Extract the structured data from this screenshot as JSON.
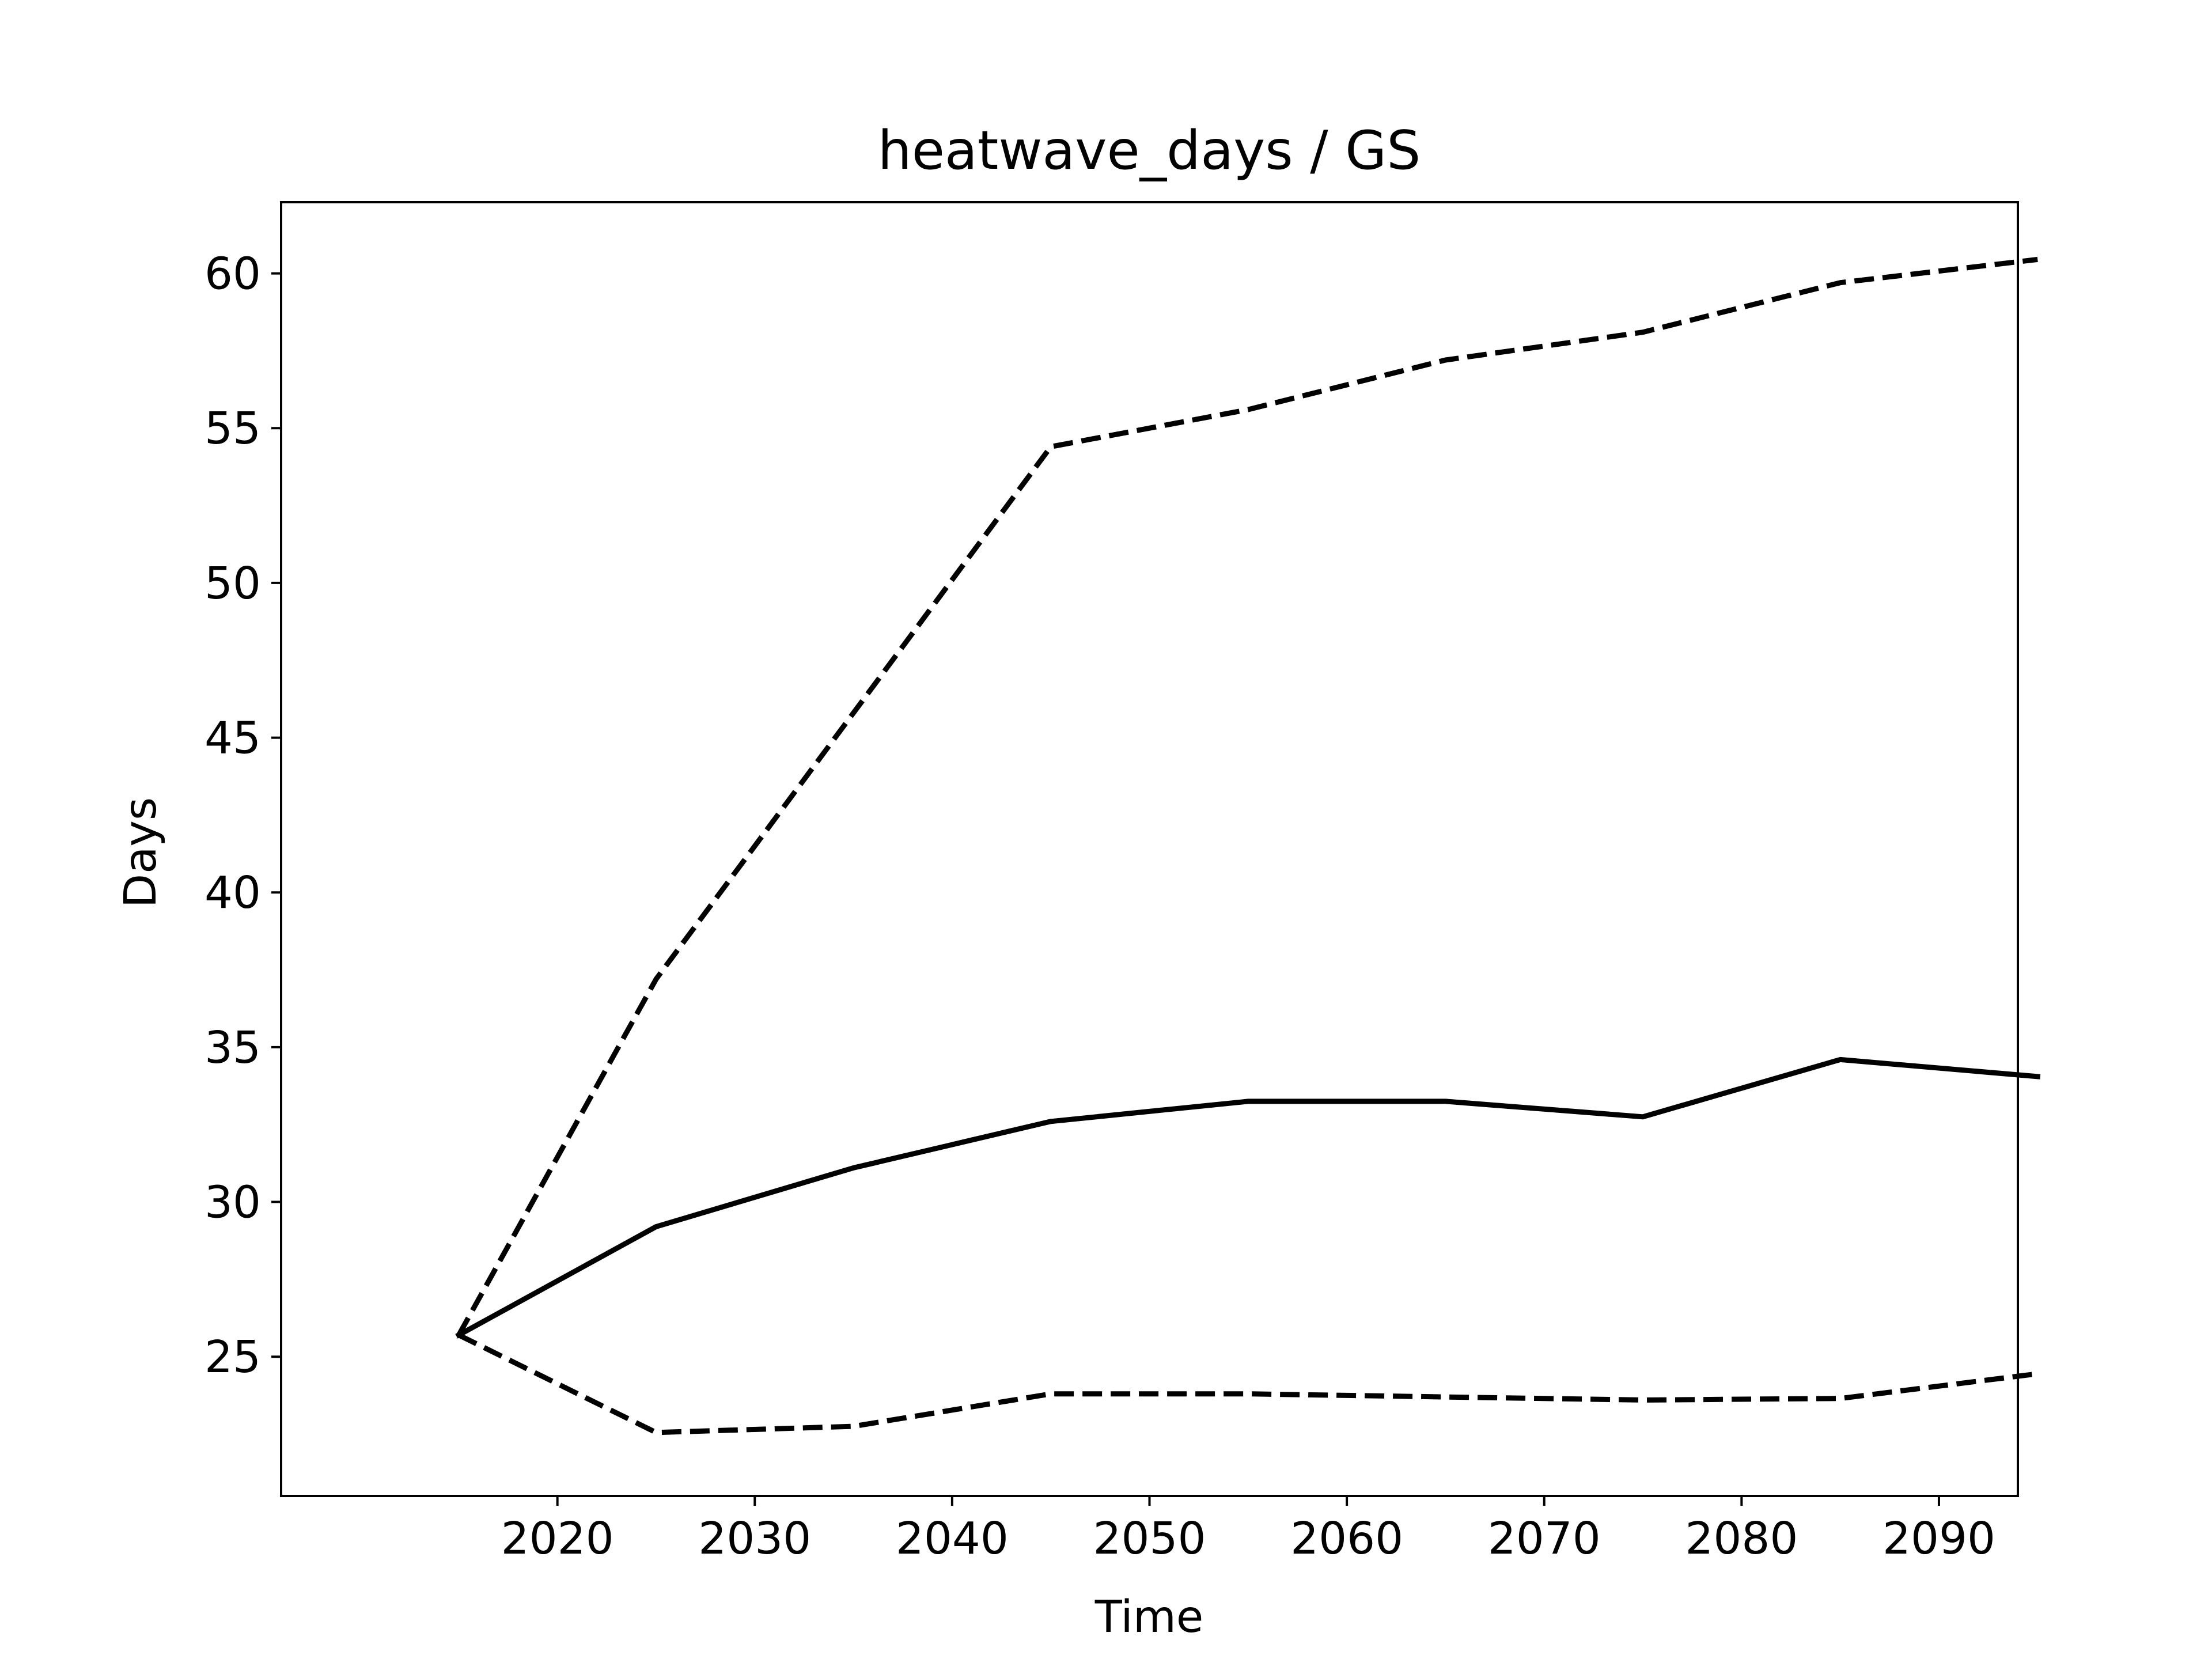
{
  "chart_data": {
    "type": "line",
    "title": "heatwave_days / GS",
    "xlabel": "Time",
    "ylabel": "Days",
    "x": [
      2015,
      2025,
      2035,
      2045,
      2055,
      2065,
      2075,
      2085,
      2095
    ],
    "xlim": [
      2006,
      2094
    ],
    "ylim": [
      20.5,
      62.3
    ],
    "xticks": [
      2020,
      2030,
      2040,
      2050,
      2060,
      2070,
      2080,
      2090
    ],
    "yticks": [
      25,
      30,
      35,
      40,
      45,
      50,
      55,
      60
    ],
    "grid": false,
    "legend": "none",
    "series": [
      {
        "style": "solid",
        "color": "#000000",
        "values": [
          25.7,
          29.2,
          31.1,
          32.6,
          33.25,
          33.25,
          32.75,
          34.6,
          34.05
        ]
      },
      {
        "style": "dashed",
        "color": "#000000",
        "values": [
          25.7,
          37.2,
          45.8,
          54.4,
          55.6,
          57.2,
          58.1,
          59.7,
          60.45
        ]
      },
      {
        "style": "dashed",
        "color": "#000000",
        "values": [
          25.7,
          22.55,
          22.75,
          23.8,
          23.8,
          23.7,
          23.6,
          23.65,
          24.45
        ]
      }
    ]
  }
}
